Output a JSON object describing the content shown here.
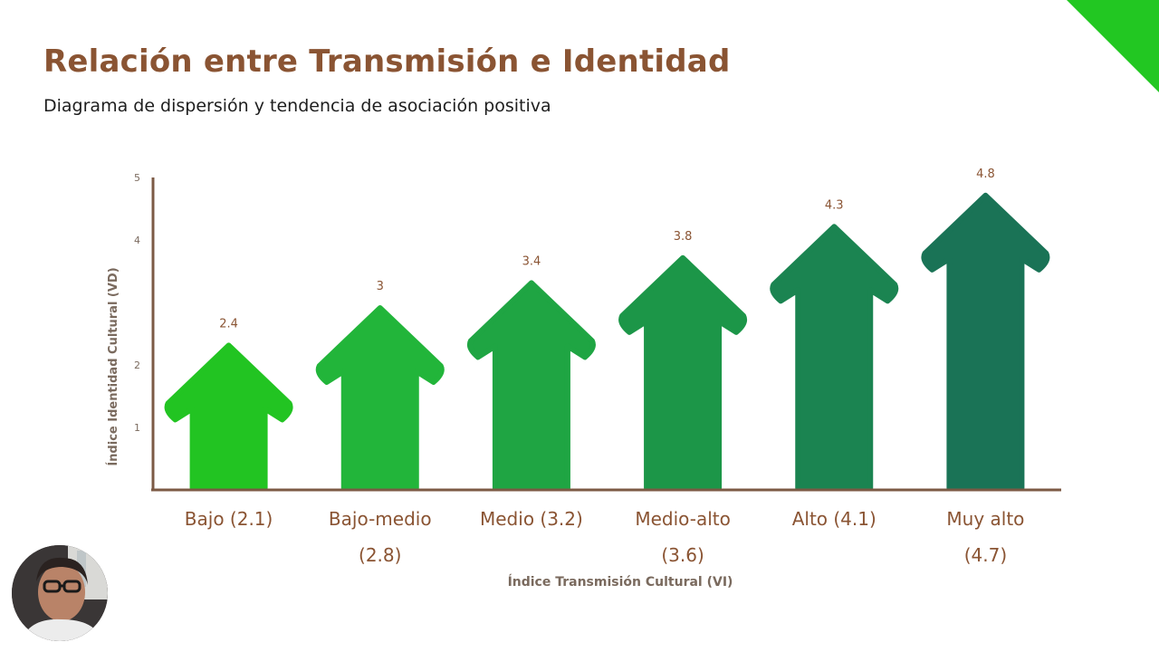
{
  "slide": {
    "title": "Relación entre Transmisión e Identidad",
    "subtitle": "Diagrama de dispersión y tendencia de asociación positiva"
  },
  "chart_data": {
    "type": "bar",
    "mark_shape": "arrow",
    "xlabel": "Índice Transmisión Cultural (VI)",
    "ylabel": "Índice Identidad Cultural (VD)",
    "ylim": [
      0,
      5
    ],
    "yticks": [
      1,
      2,
      4,
      5
    ],
    "grid": false,
    "categories": [
      [
        "Bajo (2.1)"
      ],
      [
        "Bajo-medio",
        "(2.8)"
      ],
      [
        "Medio (3.2)"
      ],
      [
        "Medio-alto",
        "(3.6)"
      ],
      [
        "Alto (4.1)"
      ],
      [
        "Muy alto",
        "(4.7)"
      ]
    ],
    "values": [
      2.4,
      3,
      3.4,
      3.8,
      4.3,
      4.8
    ],
    "colors": [
      "#22c422",
      "#22b53a",
      "#1fa543",
      "#1c9648",
      "#1b8451",
      "#1a7356"
    ]
  },
  "colors": {
    "title": "#8a5433",
    "axis": "#7c5a45",
    "corner_accent": "#22c722"
  }
}
